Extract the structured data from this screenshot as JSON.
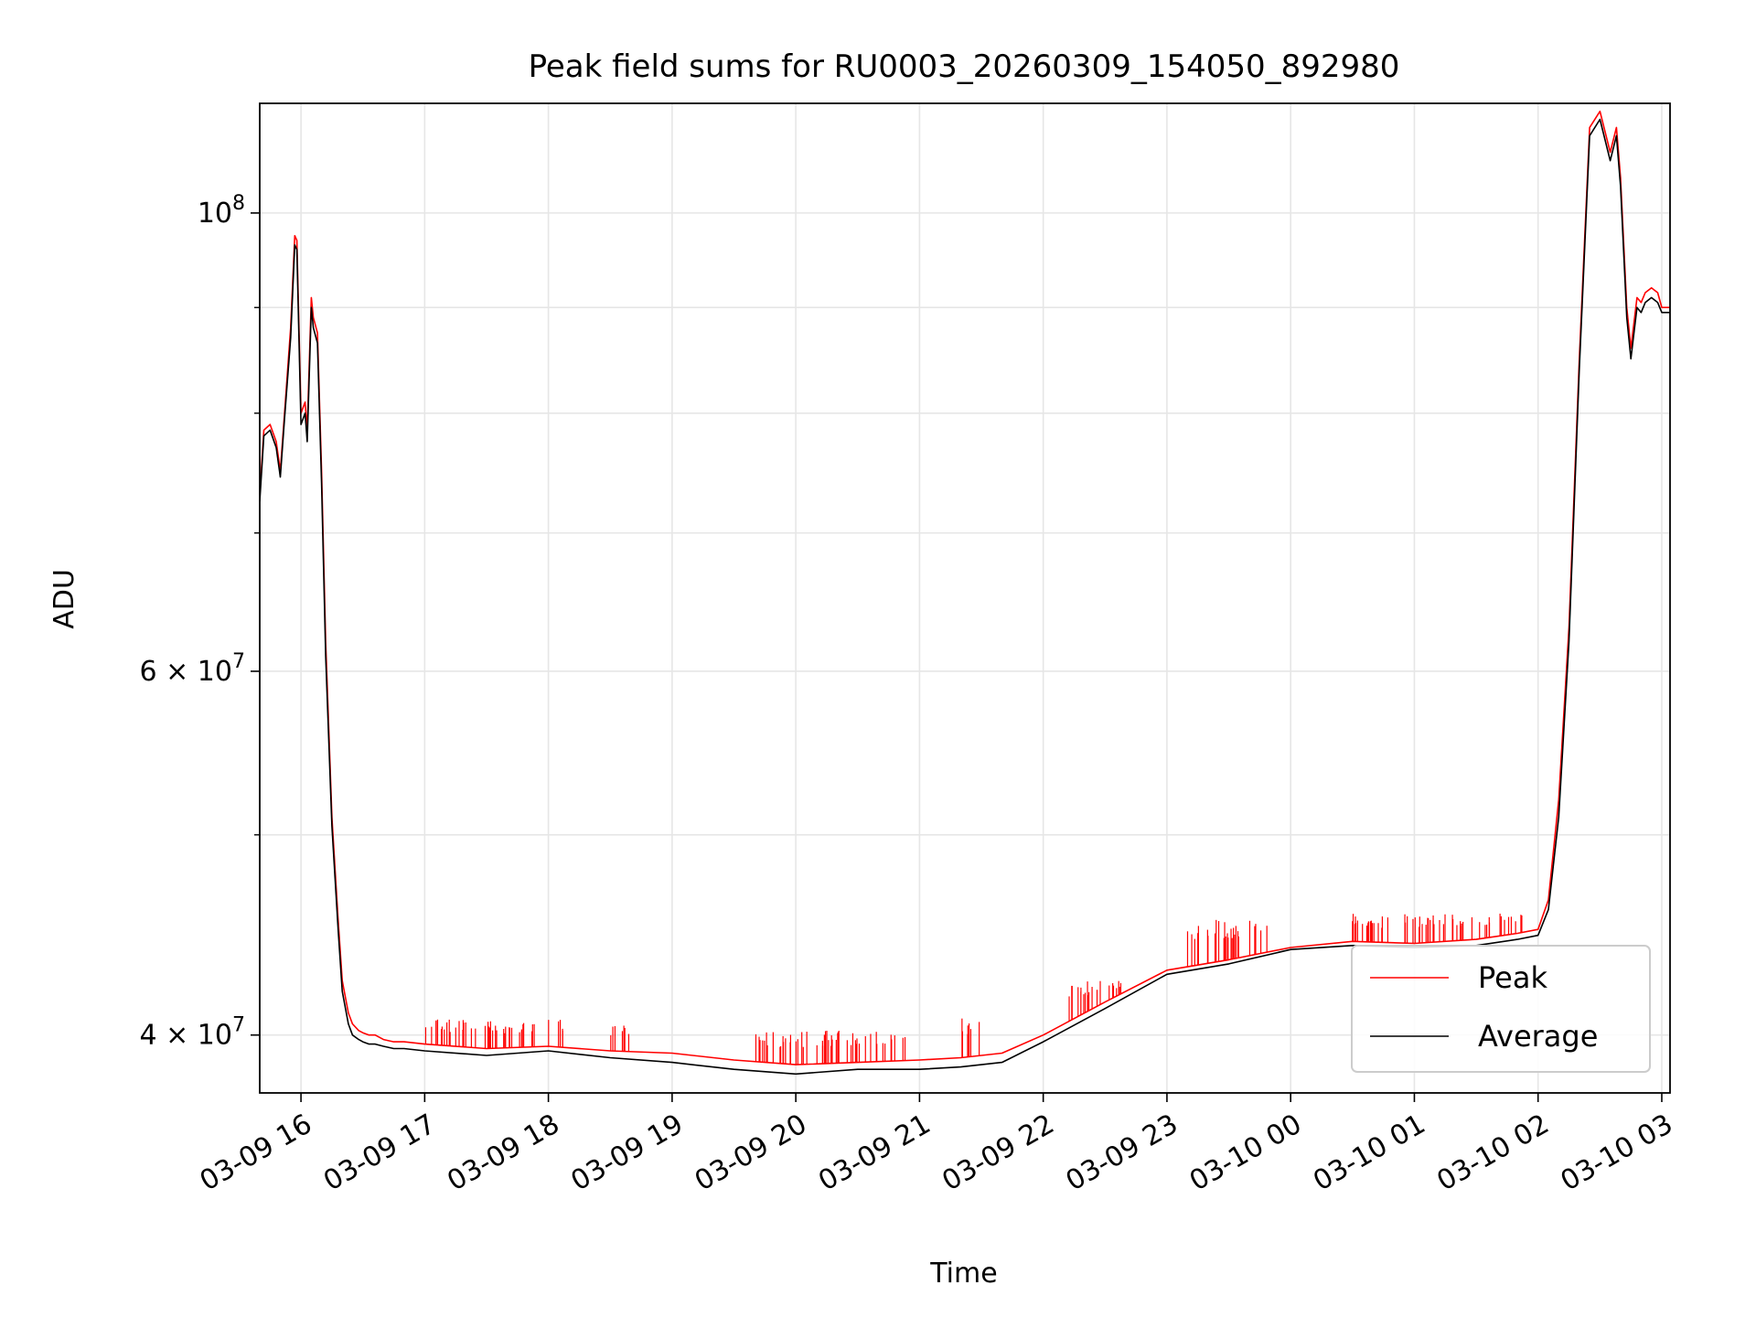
{
  "chart_data": {
    "type": "line",
    "title": "Peak field sums for RU0003_20260309_154050_892980",
    "xlabel": "Time",
    "ylabel": "ADU",
    "y_scale": "log",
    "ylim": [
      37500000,
      113000000
    ],
    "xlim": [
      "03-09 15:40",
      "03-10 03:04"
    ],
    "grid": true,
    "legend_position": "lower-right",
    "x_ticks": [
      "03-09 16",
      "03-09 17",
      "03-09 18",
      "03-09 19",
      "03-09 20",
      "03-09 21",
      "03-09 22",
      "03-09 23",
      "03-10 00",
      "03-10 01",
      "03-10 02",
      "03-10 03"
    ],
    "x_tick_values": [
      "03-09 16:00",
      "03-09 17:00",
      "03-09 18:00",
      "03-09 19:00",
      "03-09 20:00",
      "03-09 21:00",
      "03-09 22:00",
      "03-09 23:00",
      "03-10 00:00",
      "03-10 01:00",
      "03-10 02:00",
      "03-10 03:00"
    ],
    "y_ticks": [
      {
        "value": 40000000,
        "mantissa": "4",
        "exponent": "7"
      },
      {
        "value": 60000000,
        "mantissa": "6",
        "exponent": "7"
      },
      {
        "value": 100000000,
        "mantissa": "10",
        "exponent": "8"
      }
    ],
    "y_tick_symbol": "×",
    "y_minor_ticks": [
      50000000,
      70000000,
      80000000,
      90000000
    ],
    "series": [
      {
        "name": "Peak",
        "color": "#ff0000",
        "x": [
          "03-09 15:40",
          "03-09 15:42",
          "03-09 15:45",
          "03-09 15:48",
          "03-09 15:50",
          "03-09 15:52",
          "03-09 15:55",
          "03-09 15:57",
          "03-09 15:58",
          "03-09 16:00",
          "03-09 16:02",
          "03-09 16:03",
          "03-09 16:05",
          "03-09 16:06",
          "03-09 16:08",
          "03-09 16:10",
          "03-09 16:12",
          "03-09 16:15",
          "03-09 16:18",
          "03-09 16:20",
          "03-09 16:23",
          "03-09 16:25",
          "03-09 16:28",
          "03-09 16:30",
          "03-09 16:33",
          "03-09 16:36",
          "03-09 16:40",
          "03-09 16:45",
          "03-09 16:50",
          "03-09 17:00",
          "03-09 17:30",
          "03-09 18:00",
          "03-09 18:30",
          "03-09 19:00",
          "03-09 19:30",
          "03-09 20:00",
          "03-09 20:30",
          "03-09 21:00",
          "03-09 21:20",
          "03-09 21:40",
          "03-09 22:00",
          "03-09 22:30",
          "03-09 23:00",
          "03-09 23:30",
          "03-10 00:00",
          "03-10 00:30",
          "03-10 01:00",
          "03-10 01:30",
          "03-10 01:50",
          "03-10 02:00",
          "03-10 02:05",
          "03-10 02:10",
          "03-10 02:15",
          "03-10 02:20",
          "03-10 02:25",
          "03-10 02:30",
          "03-10 02:35",
          "03-10 02:38",
          "03-10 02:40",
          "03-10 02:43",
          "03-10 02:45",
          "03-10 02:48",
          "03-10 02:50",
          "03-10 02:52",
          "03-10 02:55",
          "03-10 02:58",
          "03-10 03:00",
          "03-10 03:02",
          "03-10 03:04"
        ],
        "values": [
          73000000,
          78500000,
          79000000,
          77500000,
          75000000,
          80000000,
          88000000,
          97500000,
          97000000,
          80000000,
          81000000,
          78500000,
          91000000,
          89000000,
          87500000,
          75000000,
          62000000,
          51000000,
          45500000,
          42500000,
          41000000,
          40500000,
          40200000,
          40100000,
          40000000,
          40000000,
          39800000,
          39700000,
          39700000,
          39600000,
          39400000,
          39500000,
          39300000,
          39200000,
          38900000,
          38700000,
          38800000,
          38900000,
          39000000,
          39200000,
          40000000,
          41500000,
          43000000,
          43500000,
          44100000,
          44400000,
          44300000,
          44500000,
          44800000,
          45000000,
          46500000,
          52000000,
          63000000,
          85000000,
          110000000,
          112000000,
          107000000,
          110000000,
          104000000,
          90000000,
          86000000,
          91000000,
          90500000,
          91500000,
          92000000,
          91500000,
          90000000,
          90000000,
          90000000
        ]
      },
      {
        "name": "Average",
        "color": "#000000",
        "x": [
          "03-09 15:40",
          "03-09 15:42",
          "03-09 15:45",
          "03-09 15:48",
          "03-09 15:50",
          "03-09 15:52",
          "03-09 15:55",
          "03-09 15:57",
          "03-09 15:58",
          "03-09 16:00",
          "03-09 16:02",
          "03-09 16:03",
          "03-09 16:05",
          "03-09 16:06",
          "03-09 16:08",
          "03-09 16:10",
          "03-09 16:12",
          "03-09 16:15",
          "03-09 16:18",
          "03-09 16:20",
          "03-09 16:23",
          "03-09 16:25",
          "03-09 16:28",
          "03-09 16:30",
          "03-09 16:33",
          "03-09 16:36",
          "03-09 16:40",
          "03-09 16:45",
          "03-09 16:50",
          "03-09 17:00",
          "03-09 17:30",
          "03-09 18:00",
          "03-09 18:30",
          "03-09 19:00",
          "03-09 19:30",
          "03-09 20:00",
          "03-09 20:30",
          "03-09 21:00",
          "03-09 21:20",
          "03-09 21:40",
          "03-09 22:00",
          "03-09 22:30",
          "03-09 23:00",
          "03-09 23:30",
          "03-10 00:00",
          "03-10 00:30",
          "03-10 01:00",
          "03-10 01:30",
          "03-10 01:50",
          "03-10 02:00",
          "03-10 02:05",
          "03-10 02:10",
          "03-10 02:15",
          "03-10 02:20",
          "03-10 02:25",
          "03-10 02:30",
          "03-10 02:35",
          "03-10 02:38",
          "03-10 02:40",
          "03-10 02:43",
          "03-10 02:45",
          "03-10 02:48",
          "03-10 02:50",
          "03-10 02:52",
          "03-10 02:55",
          "03-10 02:58",
          "03-10 03:00",
          "03-10 03:02",
          "03-10 03:04"
        ],
        "values": [
          72500000,
          78000000,
          78500000,
          77000000,
          74500000,
          79500000,
          87000000,
          96500000,
          96000000,
          79000000,
          80000000,
          77500000,
          90000000,
          88000000,
          86500000,
          74000000,
          61000000,
          50500000,
          45000000,
          42000000,
          40500000,
          40000000,
          39800000,
          39700000,
          39600000,
          39600000,
          39500000,
          39400000,
          39400000,
          39300000,
          39100000,
          39300000,
          39000000,
          38800000,
          38500000,
          38300000,
          38500000,
          38500000,
          38600000,
          38800000,
          39700000,
          41200000,
          42800000,
          43300000,
          44000000,
          44200000,
          44100000,
          44200000,
          44500000,
          44700000,
          46000000,
          51000000,
          62000000,
          84000000,
          109000000,
          111000000,
          106000000,
          109000000,
          103000000,
          89000000,
          85000000,
          90000000,
          89500000,
          90500000,
          91000000,
          90500000,
          89500000,
          89500000,
          89500000
        ]
      }
    ],
    "peak_spikes": {
      "color": "#ff0000",
      "note_free_regions": [
        {
          "from": "03-09 17:00",
          "to": "03-09 18:10",
          "top": 40700000
        },
        {
          "from": "03-09 18:30",
          "to": "03-09 18:40",
          "top": 40500000
        },
        {
          "from": "03-09 19:40",
          "to": "03-09 20:55",
          "top": 40200000
        },
        {
          "from": "03-09 21:20",
          "to": "03-09 21:30",
          "top": 41000000
        },
        {
          "from": "03-09 22:10",
          "to": "03-09 22:40",
          "top": 42500000
        },
        {
          "from": "03-09 23:10",
          "to": "03-09 23:50",
          "top": 45500000
        },
        {
          "from": "03-10 00:30",
          "to": "03-10 01:55",
          "top": 45800000
        }
      ]
    }
  }
}
